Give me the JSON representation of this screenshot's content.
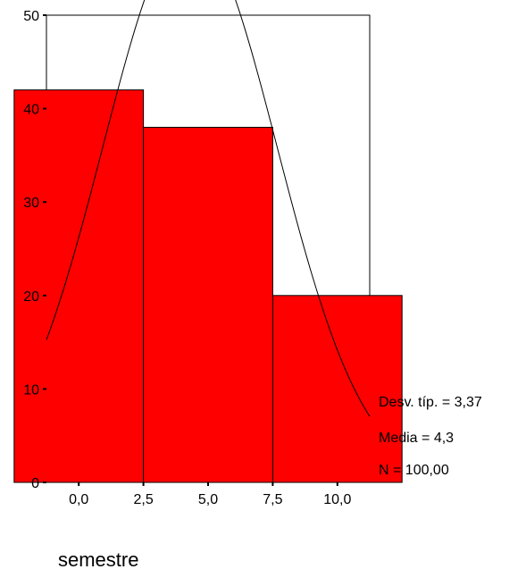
{
  "chart_data": {
    "type": "bar",
    "title": "",
    "xlabel": "semestre",
    "ylabel": "",
    "categories": [
      "0,0",
      "5,0",
      "10,0"
    ],
    "bin_centers": [
      0,
      5,
      10
    ],
    "bin_width": 5,
    "values": [
      42,
      38,
      20
    ],
    "xlim": [
      -1.25,
      11.25
    ],
    "ylim": [
      0,
      50
    ],
    "x_ticks": [
      0,
      2.5,
      5,
      7.5,
      10
    ],
    "x_tick_labels": [
      "0,0",
      "2,5",
      "5,0",
      "7,5",
      "10,0"
    ],
    "y_ticks": [
      0,
      10,
      20,
      30,
      40,
      50
    ],
    "y_tick_labels": [
      "0",
      "10",
      "20",
      "30",
      "40",
      "50"
    ],
    "grid": false,
    "bar_color": "#ff0000",
    "normal_curve": {
      "mean": 4.3,
      "std": 3.37,
      "n": 100
    },
    "stats": {
      "std_label": "Desv. típ. = 3,37",
      "mean_label": "Media = 4,3",
      "n_label": "N = 100,00"
    }
  }
}
